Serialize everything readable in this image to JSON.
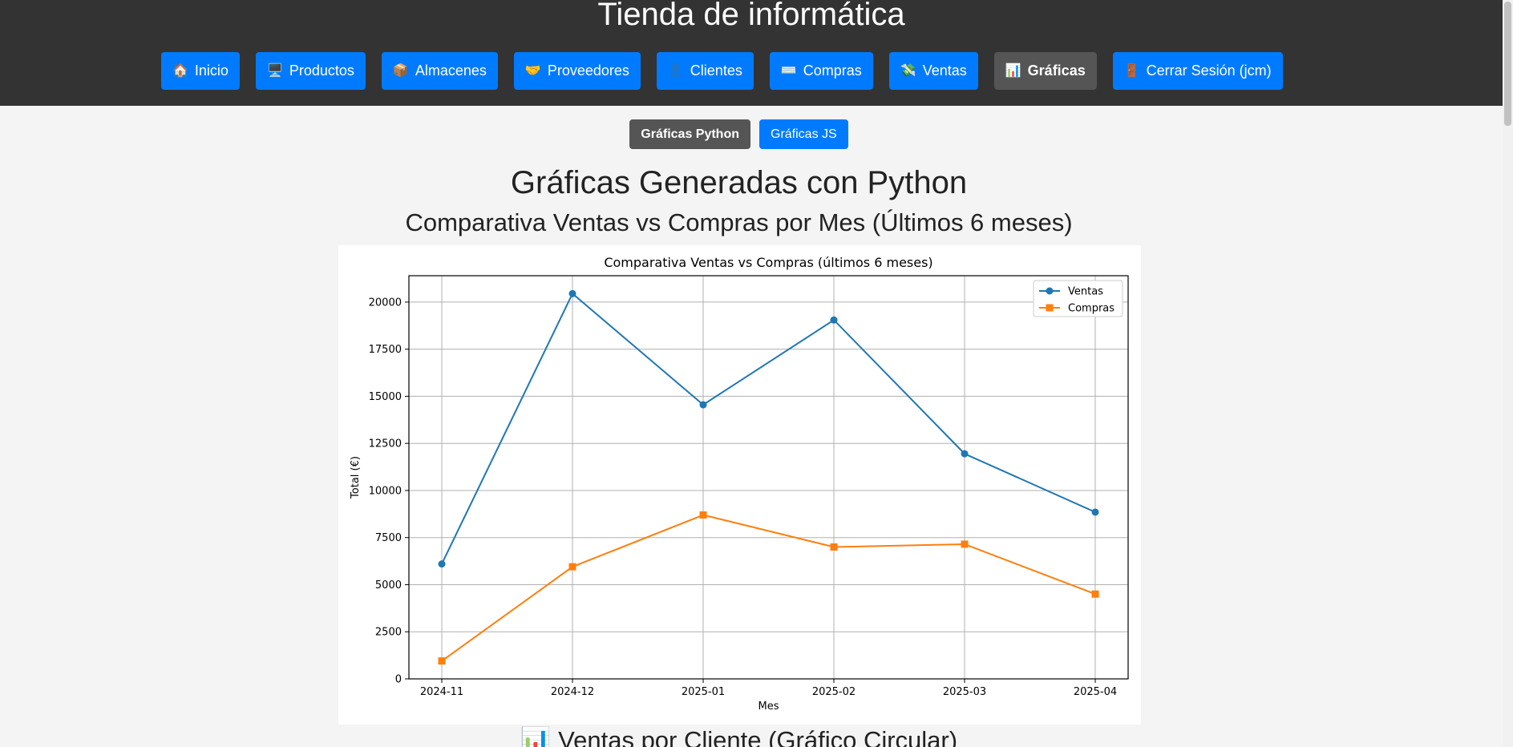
{
  "header": {
    "title": "Tienda de informática"
  },
  "nav": {
    "items": [
      {
        "icon": "🏠",
        "label": "Inicio",
        "icon_name": "home-icon",
        "active": false
      },
      {
        "icon": "🖥️",
        "label": "Productos",
        "icon_name": "computer-icon",
        "active": false
      },
      {
        "icon": "📦",
        "label": "Almacenes",
        "icon_name": "package-icon",
        "active": false
      },
      {
        "icon": "🤝",
        "label": "Proveedores",
        "icon_name": "handshake-icon",
        "active": false
      },
      {
        "icon": "👤",
        "label": "Clientes",
        "icon_name": "user-icon",
        "active": false
      },
      {
        "icon": "⌨️",
        "label": "Compras",
        "icon_name": "keyboard-icon",
        "active": false
      },
      {
        "icon": "💸",
        "label": "Ventas",
        "icon_name": "money-icon",
        "active": false
      },
      {
        "icon": "📊",
        "label": "Gráficas",
        "icon_name": "bar-chart-icon",
        "active": true
      },
      {
        "icon": "🚪",
        "label": "Cerrar Sesión (jcm)",
        "icon_name": "door-icon",
        "active": false
      }
    ]
  },
  "subnav": {
    "python_label": "Gráficas Python",
    "js_label": "Gráficas JS"
  },
  "page": {
    "title": "Gráficas Generadas con Python",
    "section1_title": "Comparativa Ventas vs Compras por Mes (Últimos 6 meses)",
    "section2_icon": "📊",
    "section2_title": "Ventas por Cliente (Gráfico Circular)"
  },
  "colors": {
    "header_bg": "#333333",
    "nav_button": "#007bff",
    "nav_active": "#555555",
    "series_ventas": "#1f77b4",
    "series_compras": "#ff7f0e"
  },
  "chart_data": {
    "type": "line",
    "title": "Comparativa Ventas vs Compras (últimos 6 meses)",
    "xlabel": "Mes",
    "ylabel": "Total (€)",
    "categories": [
      "2024-11",
      "2024-12",
      "2025-01",
      "2025-02",
      "2025-03",
      "2025-04"
    ],
    "series": [
      {
        "name": "Ventas",
        "marker": "circle",
        "color": "#1f77b4",
        "values": [
          6100,
          20450,
          14550,
          19050,
          11950,
          8850
        ]
      },
      {
        "name": "Compras",
        "marker": "square",
        "color": "#ff7f0e",
        "values": [
          950,
          5950,
          8700,
          7000,
          7150,
          4500
        ]
      }
    ],
    "ylim": [
      0,
      21400
    ],
    "yticks": [
      0,
      2500,
      5000,
      7500,
      10000,
      12500,
      15000,
      17500,
      20000
    ],
    "grid": true,
    "legend_position": "top-right"
  }
}
